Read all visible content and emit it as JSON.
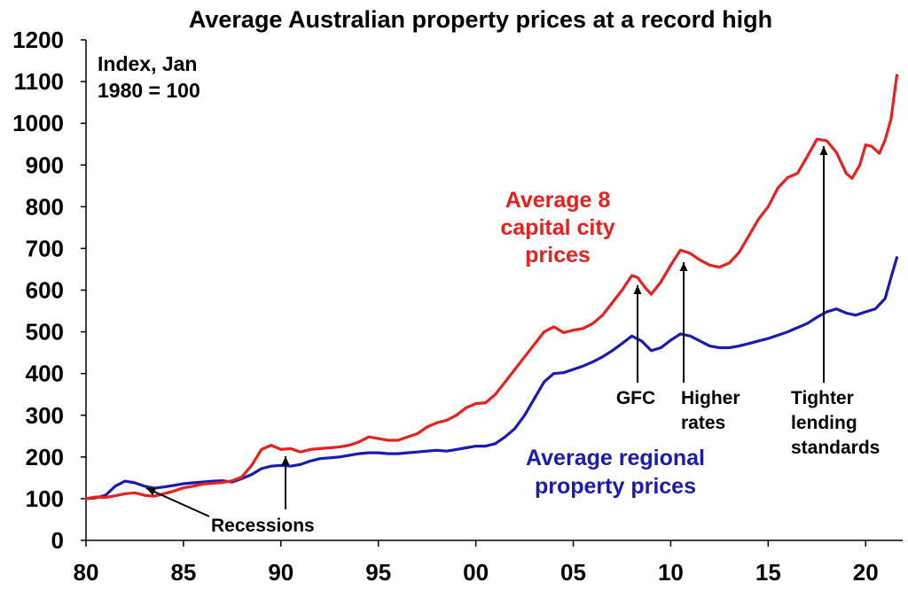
{
  "chart_data": {
    "type": "line",
    "title": "Average Australian property prices at a record high",
    "index_note": [
      "Index, Jan",
      "1980 = 100"
    ],
    "xlim": [
      1980,
      2021.9
    ],
    "ylim": [
      0,
      1200
    ],
    "x_ticks": [
      {
        "value": 1980,
        "label": "80"
      },
      {
        "value": 1985,
        "label": "85"
      },
      {
        "value": 1990,
        "label": "90"
      },
      {
        "value": 1995,
        "label": "95"
      },
      {
        "value": 2000,
        "label": "00"
      },
      {
        "value": 2005,
        "label": "05"
      },
      {
        "value": 2010,
        "label": "10"
      },
      {
        "value": 2015,
        "label": "15"
      },
      {
        "value": 2020,
        "label": "20"
      }
    ],
    "y_ticks": [
      0,
      100,
      200,
      300,
      400,
      500,
      600,
      700,
      800,
      900,
      1000,
      1100,
      1200
    ],
    "colors": {
      "capital": "#e8211e",
      "regional": "#1a1ab4",
      "axis": "#000000"
    },
    "series": [
      {
        "key": "capital",
        "name_lines": [
          "Average 8",
          "capital city",
          "prices"
        ],
        "points": [
          [
            1980.0,
            100
          ],
          [
            1980.5,
            104
          ],
          [
            1981.0,
            103
          ],
          [
            1981.5,
            107
          ],
          [
            1982.0,
            112
          ],
          [
            1982.5,
            114
          ],
          [
            1983.0,
            108
          ],
          [
            1983.5,
            106
          ],
          [
            1984.0,
            112
          ],
          [
            1984.5,
            118
          ],
          [
            1985.0,
            126
          ],
          [
            1985.5,
            130
          ],
          [
            1986.0,
            135
          ],
          [
            1986.5,
            137
          ],
          [
            1987.0,
            139
          ],
          [
            1987.5,
            143
          ],
          [
            1988.0,
            152
          ],
          [
            1988.5,
            180
          ],
          [
            1989.0,
            218
          ],
          [
            1989.5,
            228
          ],
          [
            1990.0,
            218
          ],
          [
            1990.5,
            220
          ],
          [
            1991.0,
            212
          ],
          [
            1991.5,
            218
          ],
          [
            1992.0,
            220
          ],
          [
            1992.5,
            222
          ],
          [
            1993.0,
            224
          ],
          [
            1993.5,
            228
          ],
          [
            1994.0,
            236
          ],
          [
            1994.5,
            248
          ],
          [
            1995.0,
            244
          ],
          [
            1995.5,
            240
          ],
          [
            1996.0,
            240
          ],
          [
            1996.5,
            248
          ],
          [
            1997.0,
            256
          ],
          [
            1997.5,
            272
          ],
          [
            1998.0,
            282
          ],
          [
            1998.5,
            288
          ],
          [
            1999.0,
            300
          ],
          [
            1999.5,
            318
          ],
          [
            2000.0,
            328
          ],
          [
            2000.5,
            330
          ],
          [
            2001.0,
            350
          ],
          [
            2001.5,
            380
          ],
          [
            2002.0,
            410
          ],
          [
            2002.5,
            440
          ],
          [
            2003.0,
            470
          ],
          [
            2003.5,
            500
          ],
          [
            2004.0,
            512
          ],
          [
            2004.5,
            498
          ],
          [
            2005.0,
            504
          ],
          [
            2005.5,
            508
          ],
          [
            2006.0,
            520
          ],
          [
            2006.5,
            540
          ],
          [
            2007.0,
            570
          ],
          [
            2007.5,
            600
          ],
          [
            2008.0,
            635
          ],
          [
            2008.3,
            630
          ],
          [
            2008.7,
            605
          ],
          [
            2009.0,
            590
          ],
          [
            2009.5,
            620
          ],
          [
            2010.0,
            660
          ],
          [
            2010.5,
            696
          ],
          [
            2011.0,
            688
          ],
          [
            2011.5,
            672
          ],
          [
            2012.0,
            660
          ],
          [
            2012.5,
            655
          ],
          [
            2013.0,
            665
          ],
          [
            2013.5,
            690
          ],
          [
            2014.0,
            730
          ],
          [
            2014.5,
            770
          ],
          [
            2015.0,
            800
          ],
          [
            2015.5,
            845
          ],
          [
            2016.0,
            870
          ],
          [
            2016.5,
            880
          ],
          [
            2017.0,
            920
          ],
          [
            2017.5,
            962
          ],
          [
            2018.0,
            958
          ],
          [
            2018.5,
            930
          ],
          [
            2019.0,
            880
          ],
          [
            2019.3,
            868
          ],
          [
            2019.7,
            900
          ],
          [
            2020.0,
            948
          ],
          [
            2020.3,
            945
          ],
          [
            2020.7,
            928
          ],
          [
            2021.0,
            960
          ],
          [
            2021.3,
            1010
          ],
          [
            2021.6,
            1115
          ]
        ]
      },
      {
        "key": "regional",
        "name_lines": [
          "Average regional",
          "property prices"
        ],
        "points": [
          [
            1980.0,
            100
          ],
          [
            1980.5,
            102
          ],
          [
            1981.0,
            108
          ],
          [
            1981.5,
            130
          ],
          [
            1982.0,
            142
          ],
          [
            1982.5,
            138
          ],
          [
            1983.0,
            130
          ],
          [
            1983.5,
            125
          ],
          [
            1984.0,
            128
          ],
          [
            1984.5,
            132
          ],
          [
            1985.0,
            136
          ],
          [
            1985.5,
            138
          ],
          [
            1986.0,
            140
          ],
          [
            1986.5,
            142
          ],
          [
            1987.0,
            143
          ],
          [
            1987.5,
            140
          ],
          [
            1988.0,
            148
          ],
          [
            1988.5,
            158
          ],
          [
            1989.0,
            172
          ],
          [
            1989.5,
            178
          ],
          [
            1990.0,
            180
          ],
          [
            1990.5,
            178
          ],
          [
            1991.0,
            182
          ],
          [
            1991.5,
            190
          ],
          [
            1992.0,
            196
          ],
          [
            1992.5,
            198
          ],
          [
            1993.0,
            200
          ],
          [
            1993.5,
            204
          ],
          [
            1994.0,
            208
          ],
          [
            1994.5,
            210
          ],
          [
            1995.0,
            210
          ],
          [
            1995.5,
            208
          ],
          [
            1996.0,
            208
          ],
          [
            1996.5,
            210
          ],
          [
            1997.0,
            212
          ],
          [
            1997.5,
            214
          ],
          [
            1998.0,
            216
          ],
          [
            1998.5,
            214
          ],
          [
            1999.0,
            218
          ],
          [
            1999.5,
            222
          ],
          [
            2000.0,
            226
          ],
          [
            2000.5,
            226
          ],
          [
            2001.0,
            232
          ],
          [
            2001.5,
            248
          ],
          [
            2002.0,
            268
          ],
          [
            2002.5,
            300
          ],
          [
            2003.0,
            340
          ],
          [
            2003.5,
            380
          ],
          [
            2004.0,
            400
          ],
          [
            2004.5,
            402
          ],
          [
            2005.0,
            410
          ],
          [
            2005.5,
            418
          ],
          [
            2006.0,
            428
          ],
          [
            2006.5,
            440
          ],
          [
            2007.0,
            455
          ],
          [
            2007.5,
            472
          ],
          [
            2008.0,
            490
          ],
          [
            2008.5,
            478
          ],
          [
            2009.0,
            455
          ],
          [
            2009.5,
            462
          ],
          [
            2010.0,
            480
          ],
          [
            2010.5,
            495
          ],
          [
            2011.0,
            490
          ],
          [
            2011.5,
            478
          ],
          [
            2012.0,
            466
          ],
          [
            2012.5,
            462
          ],
          [
            2013.0,
            462
          ],
          [
            2013.5,
            466
          ],
          [
            2014.0,
            472
          ],
          [
            2014.5,
            478
          ],
          [
            2015.0,
            484
          ],
          [
            2015.5,
            492
          ],
          [
            2016.0,
            500
          ],
          [
            2016.5,
            510
          ],
          [
            2017.0,
            520
          ],
          [
            2017.5,
            535
          ],
          [
            2018.0,
            548
          ],
          [
            2018.5,
            555
          ],
          [
            2019.0,
            545
          ],
          [
            2019.5,
            540
          ],
          [
            2020.0,
            548
          ],
          [
            2020.5,
            555
          ],
          [
            2021.0,
            580
          ],
          [
            2021.3,
            630
          ],
          [
            2021.6,
            678
          ]
        ]
      }
    ],
    "annotations": [
      {
        "key": "recessions",
        "lines": [
          "Recessions"
        ]
      },
      {
        "key": "gfc",
        "lines": [
          "GFC"
        ]
      },
      {
        "key": "higher_rates",
        "lines": [
          "Higher",
          "rates"
        ]
      },
      {
        "key": "tighter_lending",
        "lines": [
          "Tighter",
          "lending",
          "standards"
        ]
      }
    ]
  }
}
